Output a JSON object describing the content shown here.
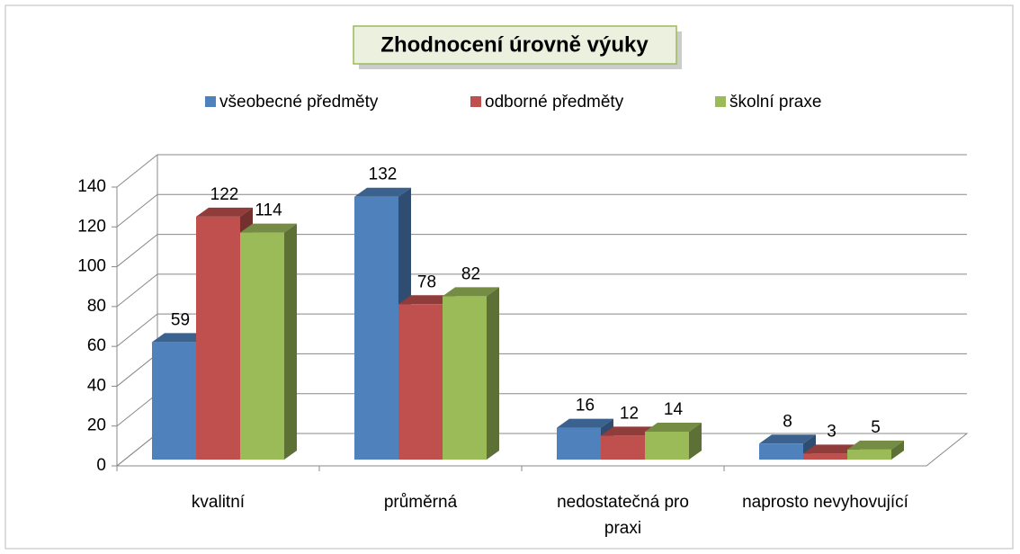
{
  "chart_data": {
    "type": "bar3d",
    "title": "Zhodnocení úrovně výuky",
    "categories": [
      "kvalitní",
      "průměrná",
      "nedostatečná pro praxi",
      "naprosto nevyhovující"
    ],
    "series": [
      {
        "name": "všeobecné předměty",
        "color": "#4f81bd",
        "values": [
          59,
          132,
          16,
          8
        ]
      },
      {
        "name": "odborné předměty",
        "color": "#c0504d",
        "values": [
          122,
          78,
          12,
          3
        ]
      },
      {
        "name": "školní praxe",
        "color": "#9bbb59",
        "values": [
          114,
          82,
          14,
          5
        ]
      }
    ],
    "ylim": [
      0,
      140
    ],
    "yticks": [
      0,
      20,
      40,
      60,
      80,
      100,
      120,
      140
    ],
    "grid": true,
    "legend": "top"
  }
}
